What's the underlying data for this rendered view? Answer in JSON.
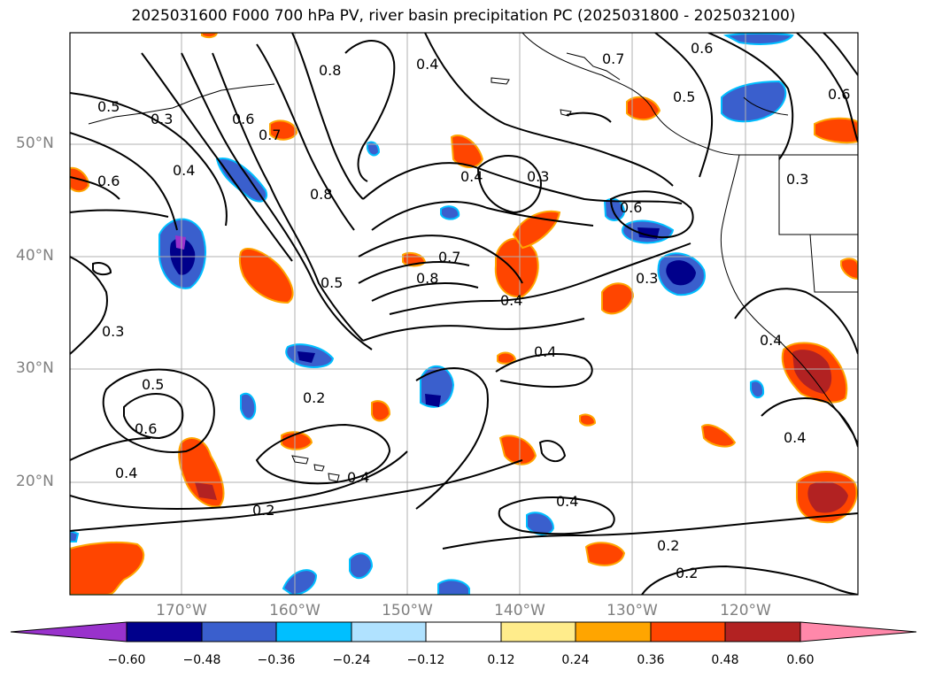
{
  "title": "2025031600 F000 700 hPa PV, river basin precipitation PC (2025031800 - 2025032100)",
  "axes": {
    "lat_labels": [
      "50°N",
      "40°N",
      "30°N",
      "20°N"
    ],
    "lon_labels": [
      "170°W",
      "160°W",
      "150°W",
      "140°W",
      "130°W",
      "120°W"
    ]
  },
  "contour_labels": [
    "0.5",
    "0.3",
    "0.6",
    "0.4",
    "0.8",
    "0.7",
    "0.6",
    "0.4",
    "0.7",
    "0.6",
    "0.5",
    "0.6",
    "0.8",
    "0.4",
    "0.3",
    "0.6",
    "0.3",
    "0.5",
    "0.7",
    "0.8",
    "0.4",
    "0.3",
    "0.3",
    "0.5",
    "0.6",
    "0.4",
    "0.2",
    "0.4",
    "0.4",
    "0.2",
    "0.4",
    "0.4",
    "0.2",
    "0.2",
    "0.4"
  ],
  "colorbar": {
    "ticks": [
      "−0.60",
      "−0.48",
      "−0.36",
      "−0.24",
      "−0.12",
      "0.12",
      "0.24",
      "0.36",
      "0.48",
      "0.60"
    ],
    "colors": [
      "#9932cc",
      "#00008b",
      "#3a5fcd",
      "#00bfff",
      "#b0e2ff",
      "#ffffff",
      "#ffec8b",
      "#ffa500",
      "#ff4500",
      "#b22222",
      "#ff88aa"
    ]
  }
}
